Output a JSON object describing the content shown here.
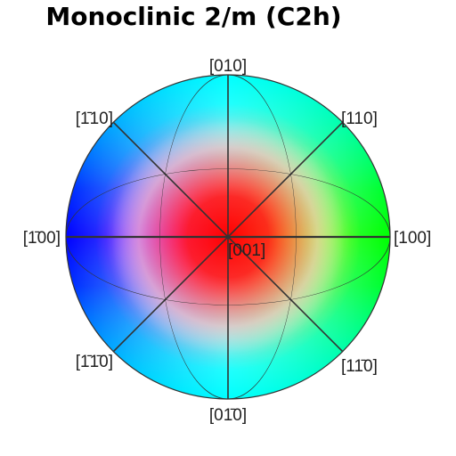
{
  "title": "Monoclinic 2/m (C2h)",
  "directions": {
    "d010": "[010]",
    "d110": "[110]",
    "dm110": "[1̄10]",
    "dm100": "[1̄00]",
    "d100": "[100]",
    "d001": "[001]",
    "dm1m10": "[1̄1̄0]",
    "d1m10": "[11̄0]",
    "d0m10": "[01̄0]"
  },
  "colors": {
    "center": "#ff0000",
    "edge_100": "#00ff00",
    "edge_010": "#00ffff",
    "edge_m100": "#0000ff",
    "magenta": "#ff00ff",
    "yellow": "#ffff00"
  }
}
